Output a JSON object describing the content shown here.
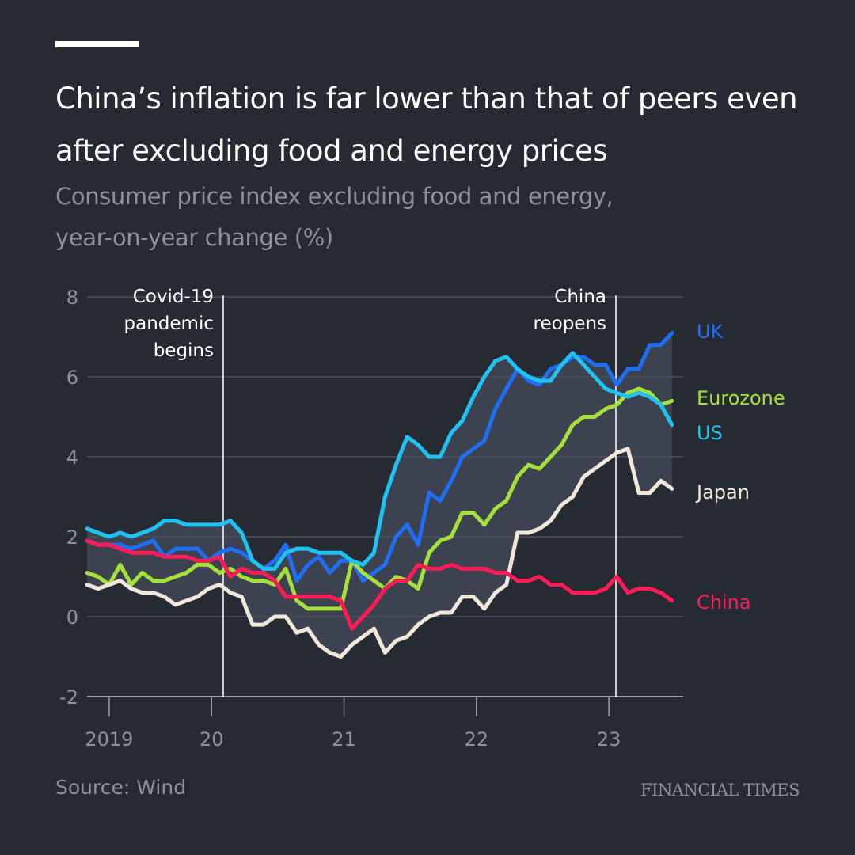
{
  "header": {
    "title": "China’s inflation is far lower than that of peers even after excluding food and energy prices",
    "subtitle_line1": "Consumer price index excluding food and energy,",
    "subtitle_line2": "year-on-year change (%)"
  },
  "footer": {
    "source": "Source: Wind",
    "logo": "FINANCIAL TIMES"
  },
  "chart_data": {
    "type": "line",
    "title": "China’s inflation is far lower than that of peers even after excluding food and energy prices",
    "ylabel": "Consumer price index excluding food and energy, year-on-year change (%)",
    "ylim": [
      -2,
      8
    ],
    "yticks": [
      "8",
      "6",
      "4",
      "2",
      "0",
      "-2"
    ],
    "xticks": [
      "2019",
      "20",
      "21",
      "22",
      "23"
    ],
    "x_start": "2019-01",
    "x_frequency": "monthly",
    "grid": true,
    "legend": "direct labels at right end of lines",
    "band": "shaded range between highest and lowest of UK, US, Eurozone and Japan",
    "annotations": [
      {
        "date": "2020-01",
        "lines": [
          "Covid-19",
          "pandemic",
          "begins"
        ]
      },
      {
        "date": "2023-01",
        "lines": [
          "China",
          "reopens"
        ]
      }
    ],
    "series": [
      {
        "name": "UK",
        "color": "#1f6ff5",
        "values": [
          1.9,
          1.8,
          1.8,
          1.8,
          1.7,
          1.8,
          1.9,
          1.5,
          1.7,
          1.7,
          1.7,
          1.4,
          1.6,
          1.7,
          1.6,
          1.4,
          1.2,
          1.4,
          1.8,
          0.9,
          1.3,
          1.5,
          1.1,
          1.4,
          1.4,
          0.9,
          1.1,
          1.3,
          2.0,
          2.3,
          1.8,
          3.1,
          2.9,
          3.4,
          4.0,
          4.2,
          4.4,
          5.2,
          5.7,
          6.2,
          5.9,
          5.8,
          6.2,
          6.3,
          6.5,
          6.5,
          6.3,
          6.3,
          5.8,
          6.2,
          6.2,
          6.8,
          6.8,
          7.1
        ]
      },
      {
        "name": "Eurozone",
        "color": "#a6e03a",
        "values": [
          1.1,
          1.0,
          0.8,
          1.3,
          0.8,
          1.1,
          0.9,
          0.9,
          1.0,
          1.1,
          1.3,
          1.3,
          1.1,
          1.2,
          1.0,
          0.9,
          0.9,
          0.8,
          1.2,
          0.4,
          0.2,
          0.2,
          0.2,
          0.2,
          1.4,
          1.1,
          0.9,
          0.7,
          1.0,
          0.9,
          0.7,
          1.6,
          1.9,
          2.0,
          2.6,
          2.6,
          2.3,
          2.7,
          2.9,
          3.5,
          3.8,
          3.7,
          4.0,
          4.3,
          4.8,
          5.0,
          5.0,
          5.2,
          5.3,
          5.6,
          5.7,
          5.6,
          5.3,
          5.4
        ]
      },
      {
        "name": "US",
        "color": "#1fc3f3",
        "values": [
          2.2,
          2.1,
          2.0,
          2.1,
          2.0,
          2.1,
          2.2,
          2.4,
          2.4,
          2.3,
          2.3,
          2.3,
          2.3,
          2.4,
          2.1,
          1.4,
          1.2,
          1.2,
          1.6,
          1.7,
          1.7,
          1.6,
          1.6,
          1.6,
          1.4,
          1.3,
          1.6,
          3.0,
          3.8,
          4.5,
          4.3,
          4.0,
          4.0,
          4.6,
          4.9,
          5.5,
          6.0,
          6.4,
          6.5,
          6.2,
          6.0,
          5.9,
          5.9,
          6.3,
          6.6,
          6.3,
          6.0,
          5.7,
          5.6,
          5.5,
          5.6,
          5.5,
          5.3,
          4.8
        ]
      },
      {
        "name": "Japan",
        "color": "#f1e7db",
        "values": [
          0.8,
          0.7,
          0.8,
          0.9,
          0.7,
          0.6,
          0.6,
          0.5,
          0.3,
          0.4,
          0.5,
          0.7,
          0.8,
          0.6,
          0.5,
          -0.2,
          -0.2,
          0.0,
          0.0,
          -0.4,
          -0.3,
          -0.7,
          -0.9,
          -1.0,
          -0.7,
          -0.5,
          -0.3,
          -0.9,
          -0.6,
          -0.5,
          -0.2,
          0.0,
          0.1,
          0.1,
          0.5,
          0.5,
          0.2,
          0.6,
          0.8,
          2.1,
          2.1,
          2.2,
          2.4,
          2.8,
          3.0,
          3.5,
          3.7,
          3.9,
          4.1,
          4.2,
          3.1,
          3.1,
          3.4,
          3.2
        ]
      },
      {
        "name": "China",
        "color": "#ff1b57",
        "values": [
          1.9,
          1.8,
          1.8,
          1.7,
          1.6,
          1.6,
          1.6,
          1.5,
          1.5,
          1.5,
          1.4,
          1.4,
          1.5,
          1.0,
          1.2,
          1.1,
          1.1,
          0.9,
          0.5,
          0.5,
          0.5,
          0.5,
          0.5,
          0.4,
          -0.3,
          0.0,
          0.3,
          0.7,
          0.9,
          0.9,
          1.3,
          1.2,
          1.2,
          1.3,
          1.2,
          1.2,
          1.2,
          1.1,
          1.1,
          0.9,
          0.9,
          1.0,
          0.8,
          0.8,
          0.6,
          0.6,
          0.6,
          0.7,
          1.0,
          0.6,
          0.7,
          0.7,
          0.6,
          0.4
        ]
      }
    ]
  },
  "colors": {
    "background": "#262a33",
    "band": "#3c4250",
    "grid": "#4a4f5a",
    "axis_text": "#8d9199"
  }
}
